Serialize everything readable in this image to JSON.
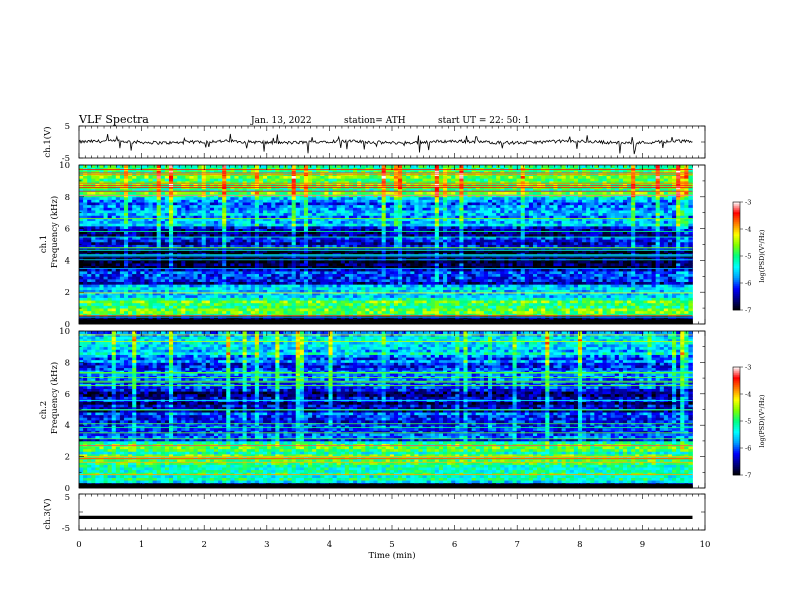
{
  "header": {
    "title": "VLF  Spectra",
    "date": "Jan.  13,  2022",
    "station": "station= ATH",
    "start": "start  UT  =    22: 50: 1"
  },
  "colors": {
    "waveform": "#000000",
    "colormap": [
      "#000000",
      "#000080",
      "#0000ff",
      "#00a0ff",
      "#00ffff",
      "#00ff80",
      "#80ff00",
      "#ffff00",
      "#ff8000",
      "#ff0000",
      "#ffffff"
    ]
  },
  "chart_data": [
    {
      "type": "line",
      "panel": "ch1-waveform",
      "ylabel": "ch.1(V)",
      "ylim": [
        -5,
        5
      ],
      "yticks": [
        "5",
        "-5"
      ],
      "x_range_min": [
        0,
        10
      ],
      "approx_level": 0,
      "grid": false
    },
    {
      "type": "heatmap",
      "panel": "ch1-spectrogram",
      "ylabel": "ch.1\nFrequency  (kHz)",
      "ylim": [
        0,
        10
      ],
      "yticks": [
        "0",
        "2",
        "4",
        "6",
        "8",
        "10"
      ],
      "x_range_min": [
        0,
        9.8
      ],
      "colorbar": {
        "label": "log(PSD)(V²/Hz)",
        "range": [
          -7,
          -3
        ],
        "ticks": [
          "-3",
          "-4",
          "-5",
          "-6",
          "-7"
        ]
      },
      "bands": [
        {
          "f": [
            0,
            0.5
          ],
          "level": -7
        },
        {
          "f": [
            0.5,
            1.5
          ],
          "level": -4.8
        },
        {
          "f": [
            1.5,
            2.5
          ],
          "level": -5.5
        },
        {
          "f": [
            2.5,
            3.5
          ],
          "level": -6.2
        },
        {
          "f": [
            3.5,
            4.8
          ],
          "level": -6.9
        },
        {
          "f": [
            4.8,
            6.2
          ],
          "level": -6.3
        },
        {
          "f": [
            6.2,
            8.0
          ],
          "level": -5.8
        },
        {
          "f": [
            8.0,
            10
          ],
          "level": -4.9
        }
      ]
    },
    {
      "type": "heatmap",
      "panel": "ch2-spectrogram",
      "ylabel": "ch.2\nFrequency  (kHz)",
      "ylim": [
        0,
        10
      ],
      "yticks": [
        "0",
        "2",
        "4",
        "6",
        "8",
        "10"
      ],
      "x_range_min": [
        0,
        9.8
      ],
      "colorbar": {
        "label": "log(PSD)(V²/Hz)",
        "range": [
          -7,
          -3
        ],
        "ticks": [
          "-3",
          "-4",
          "-5",
          "-6",
          "-7"
        ]
      },
      "bands": [
        {
          "f": [
            0,
            0.3
          ],
          "level": -7
        },
        {
          "f": [
            0.3,
            1.5
          ],
          "level": -5.2
        },
        {
          "f": [
            1.5,
            3.0
          ],
          "level": -5.0
        },
        {
          "f": [
            3.0,
            4.8
          ],
          "level": -6.1
        },
        {
          "f": [
            4.8,
            6.3
          ],
          "level": -6.5
        },
        {
          "f": [
            6.3,
            8.5
          ],
          "level": -6.0
        },
        {
          "f": [
            8.5,
            10
          ],
          "level": -5.6
        }
      ]
    },
    {
      "type": "line",
      "panel": "ch3-waveform",
      "ylabel": "ch.3(V)",
      "ylim": [
        -5,
        5
      ],
      "yticks": [
        "5",
        "0",
        "-5"
      ],
      "x_range_min": [
        0,
        9.8
      ],
      "approx_level": -1.5,
      "grid": false
    }
  ],
  "xaxis": {
    "label": "Time  (min)",
    "ticks": [
      "0",
      "1",
      "2",
      "3",
      "4",
      "5",
      "6",
      "7",
      "8",
      "9",
      "10"
    ],
    "range": [
      0,
      10
    ]
  }
}
